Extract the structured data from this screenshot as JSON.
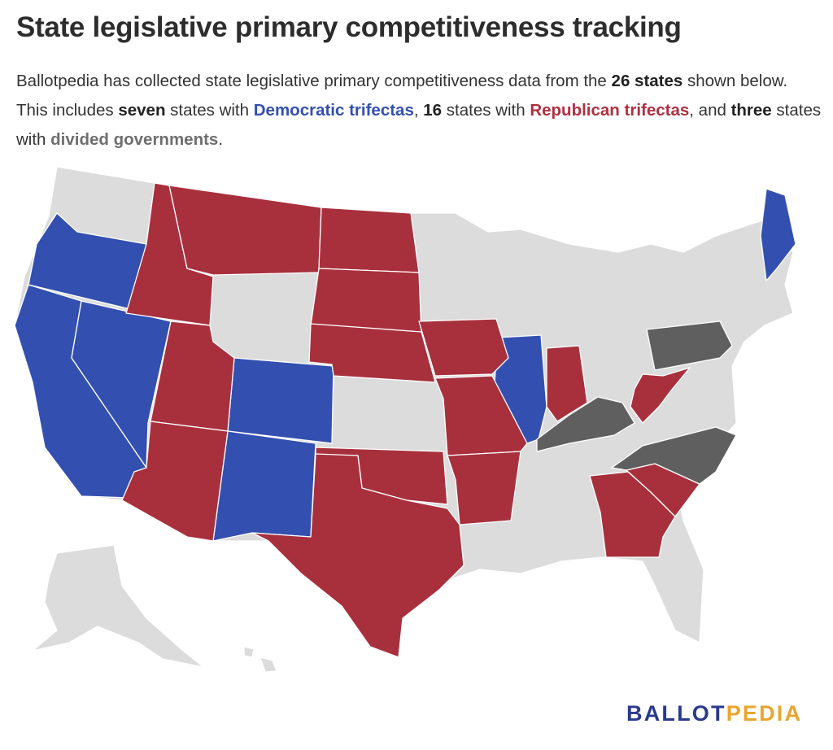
{
  "title": "State legislative primary competitiveness tracking",
  "description": {
    "t1": "Ballotpedia has collected state legislative primary competitiveness data from the ",
    "b1": "26 states",
    "t2": " shown below. This includes ",
    "b2": "seven",
    "t3": " states with ",
    "dem": "Democratic trifectas",
    "t4": ", ",
    "b3": "16",
    "t5": " states with ",
    "rep": "Republican trifectas",
    "t6": ", and ",
    "b4": "three",
    "t7": " states with ",
    "div": "divided governments",
    "t8": "."
  },
  "colors": {
    "democratic": "#3350b0",
    "republican": "#a8303d",
    "divided": "#5f5f5f",
    "none": "#dcdcdc",
    "border": "#ffffff"
  },
  "states": {
    "democratic": [
      "Oregon",
      "California",
      "Nevada",
      "Colorado",
      "New Mexico",
      "Illinois",
      "Maine"
    ],
    "republican": [
      "Idaho",
      "Montana",
      "North Dakota",
      "South Dakota",
      "Nebraska",
      "Iowa",
      "Missouri",
      "Arkansas",
      "Oklahoma",
      "Texas",
      "Utah",
      "Arizona",
      "Indiana",
      "West Virginia",
      "Georgia",
      "South Carolina"
    ],
    "divided": [
      "Pennsylvania",
      "Kentucky",
      "North Carolina"
    ]
  },
  "logo": {
    "part1": "BALLOT",
    "part2": "PEDIA"
  }
}
